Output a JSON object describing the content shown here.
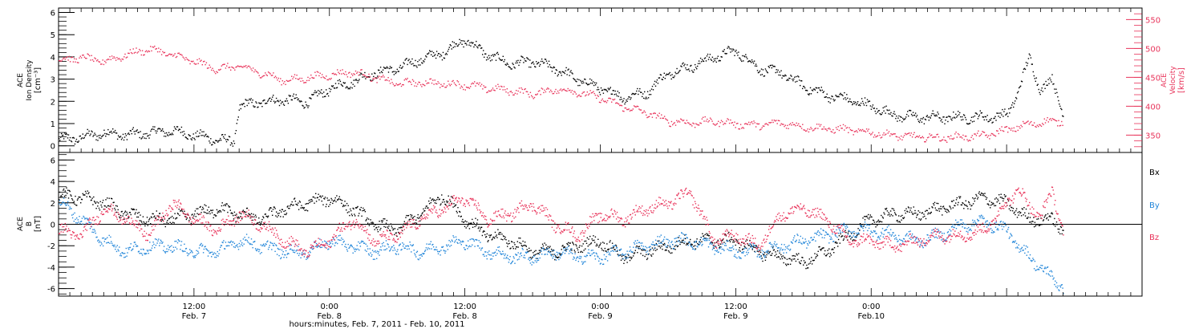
{
  "chart_data": [
    {
      "type": "scatter",
      "panel": "density_velocity",
      "ylabel_left": [
        "ACE",
        "Ion Density",
        "[cm⁻³]"
      ],
      "ylabel_right": [
        "ACE",
        "Velocity",
        "[km/s]"
      ],
      "left_axis": {
        "ylim": [
          -0.3,
          6.2
        ],
        "ticks": [
          0,
          1,
          2,
          3,
          4,
          5,
          6
        ],
        "color": "#000000"
      },
      "right_axis": {
        "ylim": [
          320,
          570
        ],
        "ticks": [
          350,
          400,
          450,
          500,
          550
        ],
        "color": "#e8335a"
      },
      "x_range_hours": [
        0,
        96
      ],
      "series": [
        {
          "axis": "left",
          "color": "#000000",
          "x": [
            0,
            2,
            4,
            6,
            8,
            10,
            12,
            14,
            15.5,
            16,
            18,
            20,
            22,
            24,
            26,
            28,
            30,
            32,
            34,
            36,
            38,
            40,
            42,
            44,
            46,
            48,
            50,
            52,
            54,
            56,
            58,
            60,
            62,
            64,
            66,
            68,
            70,
            72,
            74,
            76,
            78,
            80,
            82,
            84,
            85,
            86,
            87,
            88,
            89
          ],
          "y": [
            0.3,
            0.4,
            0.6,
            0.5,
            0.6,
            0.7,
            0.5,
            0.3,
            0.2,
            1.8,
            2.0,
            2.1,
            2.0,
            2.6,
            2.9,
            3.3,
            3.5,
            3.9,
            4.2,
            4.8,
            4.1,
            3.7,
            3.8,
            3.5,
            3.0,
            2.6,
            2.2,
            2.4,
            3.3,
            3.6,
            4.0,
            4.3,
            3.5,
            3.3,
            2.7,
            2.3,
            2.1,
            1.8,
            1.4,
            1.3,
            1.3,
            1.3,
            1.3,
            1.4,
            2.5,
            4.0,
            2.5,
            3.0,
            1.5
          ]
        },
        {
          "axis": "right",
          "color": "#e8335a",
          "x": [
            0,
            2,
            4,
            6,
            8,
            10,
            12,
            14,
            16,
            18,
            20,
            22,
            24,
            26,
            28,
            30,
            32,
            34,
            36,
            38,
            40,
            42,
            44,
            46,
            48,
            50,
            52,
            54,
            56,
            58,
            60,
            62,
            64,
            66,
            68,
            70,
            72,
            74,
            76,
            78,
            80,
            82,
            84,
            86,
            88,
            89
          ],
          "y": [
            480,
            485,
            478,
            490,
            500,
            490,
            478,
            465,
            470,
            458,
            445,
            450,
            455,
            460,
            450,
            440,
            442,
            440,
            438,
            432,
            428,
            422,
            430,
            425,
            415,
            400,
            390,
            375,
            372,
            375,
            370,
            368,
            372,
            365,
            362,
            360,
            355,
            350,
            348,
            346,
            348,
            350,
            360,
            370,
            375,
            375
          ]
        }
      ]
    },
    {
      "type": "scatter",
      "panel": "magnetic_field",
      "ylabel": [
        "ACE",
        "B",
        "[nT]"
      ],
      "ylim": [
        -6.7,
        6.7
      ],
      "ticks": [
        -6,
        -4,
        -2,
        0,
        2,
        4,
        6
      ],
      "zero_line": true,
      "legend": [
        "Bx",
        "By",
        "Bz"
      ],
      "x_range_hours": [
        0,
        96
      ],
      "series": [
        {
          "name": "Bx",
          "color": "#000000",
          "x": [
            0,
            2,
            4,
            6,
            8,
            10,
            12,
            14,
            16,
            18,
            20,
            22,
            24,
            26,
            28,
            30,
            32,
            34,
            36,
            38,
            40,
            42,
            44,
            46,
            48,
            50,
            52,
            54,
            56,
            58,
            60,
            62,
            64,
            66,
            68,
            70,
            72,
            74,
            76,
            78,
            80,
            82,
            84,
            86,
            88,
            89
          ],
          "y": [
            2.8,
            2.5,
            2.0,
            1.0,
            0.5,
            0.5,
            1.0,
            1.5,
            1.0,
            0.5,
            1.5,
            2.0,
            2.5,
            1.5,
            0.0,
            -0.5,
            1.0,
            2.8,
            0.5,
            -1.0,
            -1.5,
            -2.5,
            -2.5,
            -2.0,
            -1.5,
            -3.0,
            -2.5,
            -2.0,
            -1.5,
            -1.5,
            -1.5,
            -2.5,
            -3.0,
            -3.5,
            -2.5,
            -1.0,
            0.5,
            1.0,
            1.0,
            1.5,
            2.0,
            2.5,
            2.0,
            0.5,
            0.5,
            -0.5
          ]
        },
        {
          "name": "By",
          "color": "#2286d9",
          "x": [
            0,
            2,
            4,
            6,
            8,
            10,
            12,
            14,
            16,
            18,
            20,
            22,
            24,
            26,
            28,
            30,
            32,
            34,
            36,
            38,
            40,
            42,
            44,
            46,
            48,
            50,
            52,
            54,
            56,
            58,
            60,
            62,
            64,
            66,
            68,
            70,
            72,
            74,
            76,
            78,
            80,
            82,
            84,
            85,
            86,
            87,
            88,
            89
          ],
          "y": [
            2.2,
            0.5,
            -1.5,
            -2.5,
            -2.0,
            -2.0,
            -2.5,
            -2.5,
            -1.5,
            -2.0,
            -2.5,
            -2.5,
            -1.5,
            -2.0,
            -2.5,
            -2.0,
            -2.5,
            -2.0,
            -1.5,
            -2.5,
            -3.0,
            -3.0,
            -2.5,
            -3.0,
            -3.0,
            -2.5,
            -2.0,
            -1.5,
            -1.5,
            -2.0,
            -2.5,
            -2.5,
            -2.0,
            -1.5,
            -1.0,
            -0.5,
            -0.5,
            -1.0,
            -1.5,
            -1.0,
            0.0,
            0.3,
            -0.5,
            -2.0,
            -3.0,
            -4.0,
            -5.0,
            -5.8
          ]
        },
        {
          "name": "Bz",
          "color": "#e8335a",
          "x": [
            0,
            2,
            4,
            6,
            8,
            10,
            12,
            14,
            16,
            18,
            20,
            22,
            24,
            26,
            28,
            30,
            32,
            34,
            36,
            38,
            40,
            42,
            44,
            46,
            48,
            50,
            52,
            54,
            56,
            58,
            60,
            62,
            64,
            66,
            68,
            70,
            72,
            74,
            76,
            78,
            80,
            82,
            84,
            85,
            86,
            87,
            88,
            89
          ],
          "y": [
            -0.5,
            -1.0,
            1.5,
            0.5,
            -1.0,
            2.0,
            0.5,
            -0.5,
            1.0,
            0.0,
            -1.5,
            -2.5,
            -1.5,
            0.5,
            -1.5,
            -1.0,
            0.5,
            1.5,
            2.5,
            0.5,
            1.0,
            2.0,
            0.0,
            -1.0,
            1.0,
            0.5,
            1.5,
            2.0,
            3.0,
            -1.5,
            -1.0,
            -2.0,
            1.0,
            1.5,
            0.5,
            -1.5,
            -1.5,
            -2.0,
            -1.5,
            -1.0,
            -1.0,
            -0.5,
            2.0,
            3.5,
            1.5,
            1.0,
            3.0,
            -0.5
          ]
        }
      ]
    }
  ],
  "time_axis": {
    "ticks": [
      {
        "hours": 12,
        "time": "12:00",
        "date": "Feb. 7"
      },
      {
        "hours": 24,
        "time": "0:00",
        "date": "Feb. 8"
      },
      {
        "hours": 36,
        "time": "12:00",
        "date": "Feb. 8"
      },
      {
        "hours": 48,
        "time": "0:00",
        "date": "Feb. 9"
      },
      {
        "hours": 60,
        "time": "12:00",
        "date": "Feb. 9"
      },
      {
        "hours": 72,
        "time": "0:00",
        "date": "Feb.10"
      }
    ],
    "title": "hours:minutes, Feb.  7, 2011 - Feb. 10, 2011"
  },
  "colors": {
    "black": "#000000",
    "red": "#e8335a",
    "blue": "#2286d9"
  }
}
